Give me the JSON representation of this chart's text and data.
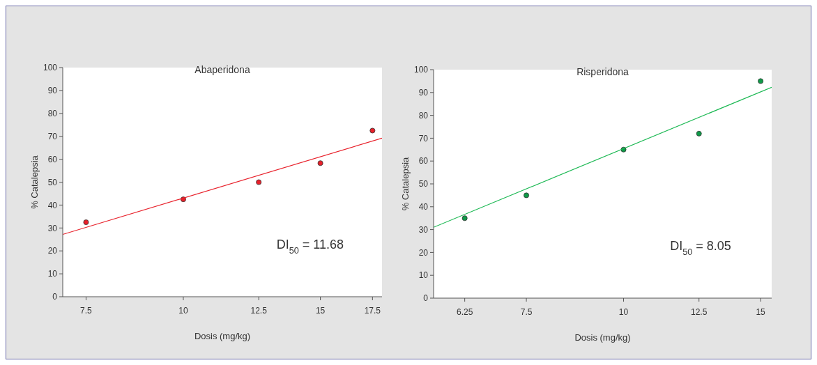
{
  "chart_data": [
    {
      "type": "scatter",
      "title": "Abaperidona",
      "xlabel": "Dosis (mg/kg)",
      "ylabel": "% Catalepsia",
      "log": "x",
      "xlim": [
        7,
        18
      ],
      "xticks": [
        7.5,
        10,
        12.5,
        15,
        17.5
      ],
      "ylim": [
        0,
        100
      ],
      "yticks": [
        0,
        10,
        20,
        30,
        40,
        50,
        60,
        70,
        80,
        90,
        100
      ],
      "grid": false,
      "x": [
        7.5,
        10,
        12.5,
        15,
        17.5
      ],
      "series": [
        {
          "color": "#e8202a",
          "marker": "circle",
          "values": [
            32.5,
            42.5,
            50,
            58.3,
            72.5
          ]
        },
        {
          "type": "line",
          "color": "#e8202a",
          "x": [
            7,
            18
          ],
          "values": [
            27.2,
            69.2
          ]
        }
      ],
      "annotations": [
        "DI$_{50}$ = 11.68"
      ]
    },
    {
      "type": "scatter",
      "title": "Risperidona",
      "xlabel": "Dosis (mg/kg)",
      "ylabel": "% Catalepsia",
      "log": "x",
      "xlim": [
        5.7,
        15.5
      ],
      "xticks": [
        6.25,
        7.5,
        10,
        12.5,
        15
      ],
      "ylim": [
        0,
        100
      ],
      "yticks": [
        0,
        10,
        20,
        30,
        40,
        50,
        60,
        70,
        80,
        90,
        100
      ],
      "grid": false,
      "x": [
        6.25,
        7.5,
        10,
        12.5,
        15
      ],
      "series": [
        {
          "color": "#0f9a48",
          "marker": "circle",
          "values": [
            35,
            45,
            65,
            72,
            95
          ]
        },
        {
          "type": "line",
          "color": "#1db954",
          "x": [
            5.7,
            15.5
          ],
          "values": [
            31,
            92.3
          ]
        }
      ],
      "annotations": [
        "DI$_{50}$ = 8.05"
      ]
    }
  ]
}
